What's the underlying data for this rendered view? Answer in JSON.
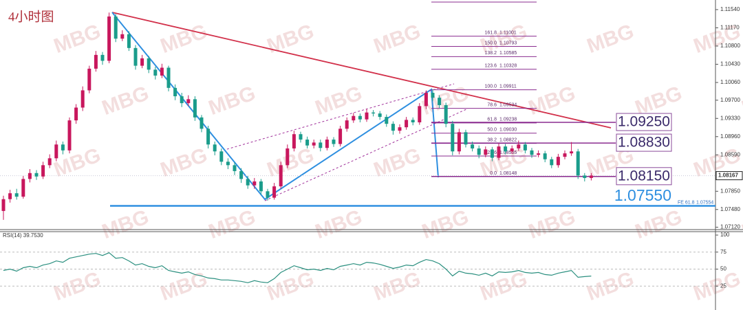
{
  "title": "4小时图",
  "watermark": "MBG",
  "chart_data": [
    {
      "type": "candlestick",
      "colors": {
        "up": "#c8175d",
        "down": "#1a9c8b"
      },
      "ylim": [
        1.07086,
        1.11735
      ],
      "yticks": [
        {
          "value": 1.1154,
          "label": "1.11540"
        },
        {
          "value": 1.1117,
          "label": "1.11170"
        },
        {
          "value": 1.108,
          "label": "1.10800"
        },
        {
          "value": 1.1043,
          "label": "1.10430"
        },
        {
          "value": 1.1006,
          "label": "1.10060"
        },
        {
          "value": 1.097,
          "label": "1.09700"
        },
        {
          "value": 1.0933,
          "label": "1.09330"
        },
        {
          "value": 1.0896,
          "label": "1.08960"
        },
        {
          "value": 1.0859,
          "label": "1.08590"
        },
        {
          "value": 1.0785,
          "label": "1.07850"
        },
        {
          "value": 1.0748,
          "label": "1.07480"
        },
        {
          "value": 1.0712,
          "label": "1.07120"
        }
      ],
      "last_price": 1.08167,
      "fib_levels": [
        {
          "label": "161.8",
          "value": 1.11001
        },
        {
          "label": "150.0",
          "value": 1.10793
        },
        {
          "label": "138.2",
          "value": 1.10585
        },
        {
          "label": "123.6",
          "value": 1.10328
        },
        {
          "label": "100.0",
          "value": 1.09911
        },
        {
          "label": "78.6",
          "value": 1.09534
        },
        {
          "label": "61.8",
          "value": 1.09238
        },
        {
          "label": "50.0",
          "value": 1.0903,
          "value_label": "1.09030"
        },
        {
          "label": "38.2",
          "value": 1.08822
        },
        {
          "label": "23.6",
          "value": 1.08565
        },
        {
          "label": "0.0",
          "value": 1.08148
        }
      ],
      "levels": [
        {
          "value": 1.0925,
          "label": "1.09250"
        },
        {
          "value": 1.0883,
          "label": "1.08830"
        },
        {
          "value": 1.0815,
          "label": "1.08150"
        }
      ],
      "target": {
        "value": 1.0755,
        "label": "1.07550"
      },
      "fe_level": {
        "label": "FE 61.8",
        "value": 1.07554
      },
      "ohlc": [
        [
          1.0745,
          1.0776,
          1.0727,
          1.0769
        ],
        [
          1.0769,
          1.0788,
          1.0762,
          1.0781
        ],
        [
          1.0781,
          1.079,
          1.0768,
          1.0774
        ],
        [
          1.0774,
          1.0816,
          1.077,
          1.081
        ],
        [
          1.081,
          1.083,
          1.0803,
          1.0822
        ],
        [
          1.0822,
          1.0828,
          1.0808,
          1.0815
        ],
        [
          1.0815,
          1.0845,
          1.081,
          1.0838
        ],
        [
          1.0838,
          1.086,
          1.0832,
          1.0852
        ],
        [
          1.0852,
          1.0888,
          1.0846,
          1.088
        ],
        [
          1.088,
          1.0886,
          1.086,
          1.0868
        ],
        [
          1.0868,
          1.0935,
          1.0862,
          1.0929
        ],
        [
          1.0929,
          1.0962,
          1.0922,
          1.0955
        ],
        [
          1.0955,
          1.0998,
          1.0948,
          1.099
        ],
        [
          1.099,
          1.104,
          1.0984,
          1.1034
        ],
        [
          1.1034,
          1.107,
          1.1028,
          1.1062
        ],
        [
          1.1062,
          1.1068,
          1.1042,
          1.105
        ],
        [
          1.105,
          1.1148,
          1.1045,
          1.114
        ],
        [
          1.114,
          1.1145,
          1.1088,
          1.1095
        ],
        [
          1.1095,
          1.1112,
          1.109,
          1.1104
        ],
        [
          1.1104,
          1.111,
          1.107,
          1.1076
        ],
        [
          1.1076,
          1.1082,
          1.1032,
          1.104
        ],
        [
          1.104,
          1.1062,
          1.1035,
          1.1055
        ],
        [
          1.1055,
          1.106,
          1.1025,
          1.1032
        ],
        [
          1.1032,
          1.1038,
          1.1012,
          1.102
        ],
        [
          1.102,
          1.1044,
          1.1015,
          1.1036
        ],
        [
          1.1036,
          1.104,
          1.0988,
          1.0995
        ],
        [
          1.0995,
          1.1002,
          1.097,
          1.0978
        ],
        [
          1.0978,
          1.0985,
          1.0956,
          1.0964
        ],
        [
          1.0964,
          1.098,
          1.0958,
          1.0972
        ],
        [
          1.0972,
          1.0978,
          1.0928,
          1.0935
        ],
        [
          1.0935,
          1.094,
          1.0905,
          1.0912
        ],
        [
          1.0912,
          1.0918,
          1.0872,
          1.088
        ],
        [
          1.088,
          1.0886,
          1.0858,
          1.0866
        ],
        [
          1.0866,
          1.0872,
          1.0838,
          1.0845
        ],
        [
          1.0845,
          1.0852,
          1.083,
          1.0838
        ],
        [
          1.0838,
          1.0844,
          1.0818,
          1.0826
        ],
        [
          1.0826,
          1.0832,
          1.0802,
          1.081
        ],
        [
          1.081,
          1.0816,
          1.079,
          1.0797
        ],
        [
          1.0797,
          1.0812,
          1.079,
          1.0805
        ],
        [
          1.0805,
          1.081,
          1.0778,
          1.0785
        ],
        [
          1.0785,
          1.079,
          1.0766,
          1.0772
        ],
        [
          1.0772,
          1.0802,
          1.0768,
          1.0795
        ],
        [
          1.0795,
          1.0845,
          1.079,
          1.0838
        ],
        [
          1.0838,
          1.088,
          1.0832,
          1.0872
        ],
        [
          1.0872,
          1.0908,
          1.0866,
          1.0901
        ],
        [
          1.0901,
          1.0906,
          1.0884,
          1.089
        ],
        [
          1.089,
          1.0896,
          1.0872,
          1.0878
        ],
        [
          1.0878,
          1.089,
          1.0872,
          1.0884
        ],
        [
          1.0884,
          1.089,
          1.0866,
          1.0873
        ],
        [
          1.0873,
          1.0896,
          1.0868,
          1.089
        ],
        [
          1.089,
          1.0895,
          1.0875,
          1.0881
        ],
        [
          1.0881,
          1.0918,
          1.0876,
          1.0912
        ],
        [
          1.0912,
          1.0935,
          1.0906,
          1.0929
        ],
        [
          1.0929,
          1.0944,
          1.0924,
          1.0938
        ],
        [
          1.0938,
          1.0943,
          1.0925,
          1.0931
        ],
        [
          1.0931,
          1.0952,
          1.0926,
          1.0945
        ],
        [
          1.0945,
          1.095,
          1.0937,
          1.0943
        ],
        [
          1.0943,
          1.0948,
          1.093,
          1.0936
        ],
        [
          1.0936,
          1.0941,
          1.0916,
          1.0922
        ],
        [
          1.0922,
          1.0927,
          1.09,
          1.0908
        ],
        [
          1.0908,
          1.0921,
          1.0902,
          1.0915
        ],
        [
          1.0915,
          1.0936,
          1.091,
          1.093
        ],
        [
          1.093,
          1.0935,
          1.0919,
          1.0925
        ],
        [
          1.0925,
          1.0964,
          1.092,
          1.0958
        ],
        [
          1.0958,
          1.099,
          1.0952,
          1.0985
        ],
        [
          1.0985,
          1.0992,
          1.0968,
          1.0975
        ],
        [
          1.0975,
          1.098,
          1.0954,
          1.096
        ],
        [
          1.096,
          1.0965,
          1.0915,
          1.0922
        ],
        [
          1.0922,
          1.0928,
          1.0858,
          1.0866
        ],
        [
          1.0866,
          1.0912,
          1.086,
          1.0905
        ],
        [
          1.0905,
          1.091,
          1.0874,
          1.088
        ],
        [
          1.088,
          1.0886,
          1.0866,
          1.0872
        ],
        [
          1.0872,
          1.0878,
          1.0852,
          1.0859
        ],
        [
          1.0859,
          1.0876,
          1.0854,
          1.087
        ],
        [
          1.087,
          1.0875,
          1.0846,
          1.0853
        ],
        [
          1.0853,
          1.0882,
          1.0848,
          1.0876
        ],
        [
          1.0876,
          1.0881,
          1.086,
          1.0866
        ],
        [
          1.0866,
          1.0878,
          1.0861,
          1.0872
        ],
        [
          1.0872,
          1.0888,
          1.0867,
          1.088
        ],
        [
          1.088,
          1.0885,
          1.0862,
          1.0868
        ],
        [
          1.0868,
          1.0873,
          1.0853,
          1.0859
        ],
        [
          1.0859,
          1.0868,
          1.0854,
          1.0862
        ],
        [
          1.0862,
          1.0867,
          1.0844,
          1.085
        ],
        [
          1.085,
          1.0855,
          1.0832,
          1.0838
        ],
        [
          1.0838,
          1.0861,
          1.0833,
          1.0855
        ],
        [
          1.0855,
          1.0868,
          1.085,
          1.0862
        ],
        [
          1.0862,
          1.0885,
          1.0857,
          1.0866
        ],
        [
          1.0866,
          1.0871,
          1.081,
          1.0817
        ],
        [
          1.0817,
          1.0822,
          1.0805,
          1.0812
        ],
        [
          1.0812,
          1.0822,
          1.0807,
          1.0817
        ]
      ]
    },
    {
      "type": "line",
      "title": "RSI(14) 39.7530",
      "color": "#2a8f7f",
      "ylim": [
        0,
        100
      ],
      "yticks": [
        25,
        50,
        75,
        100
      ],
      "values": [
        48,
        50,
        47,
        52,
        54,
        52,
        56,
        58,
        62,
        60,
        66,
        68,
        70,
        72,
        73,
        70,
        74,
        66,
        67,
        62,
        56,
        58,
        54,
        52,
        55,
        48,
        46,
        44,
        46,
        42,
        40,
        37,
        36,
        34,
        34,
        33,
        32,
        30,
        33,
        31,
        30,
        36,
        45,
        50,
        55,
        52,
        49,
        50,
        48,
        51,
        49,
        54,
        56,
        58,
        56,
        60,
        59,
        57,
        54,
        51,
        53,
        56,
        55,
        60,
        64,
        62,
        58,
        50,
        40,
        47,
        44,
        43,
        41,
        44,
        40,
        46,
        45,
        46,
        48,
        45,
        44,
        45,
        42,
        41,
        44,
        46,
        48,
        38,
        39,
        39.753
      ]
    }
  ]
}
